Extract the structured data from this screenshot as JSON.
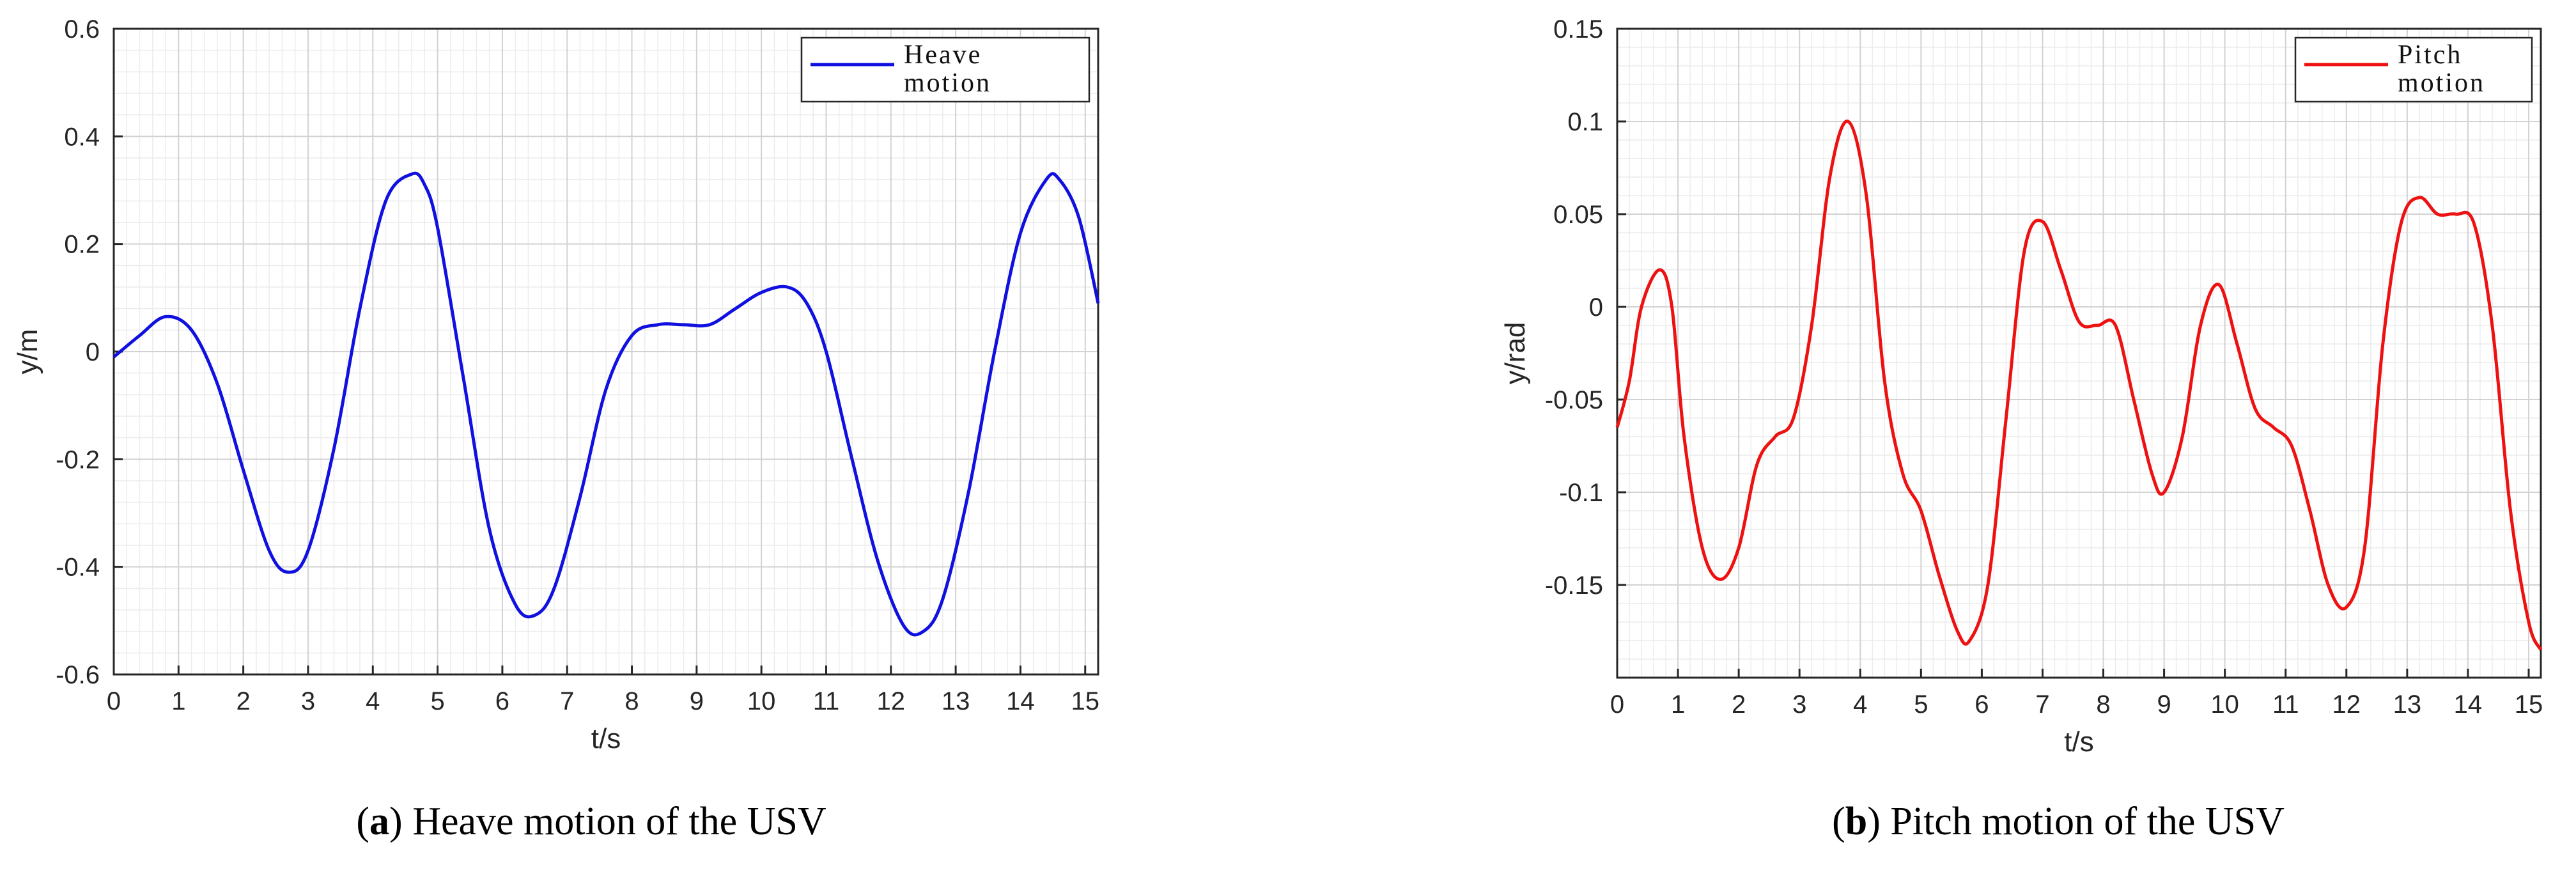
{
  "chart_data": [
    {
      "type": "line",
      "caption": {
        "letter": "a",
        "text": "Heave motion of the USV"
      },
      "xlabel": "t/s",
      "ylabel": "y/m",
      "xlim": [
        0,
        15.2
      ],
      "ylim": [
        -0.6,
        0.6
      ],
      "xticks": [
        0,
        1,
        2,
        3,
        4,
        5,
        6,
        7,
        8,
        9,
        10,
        11,
        12,
        13,
        14,
        15
      ],
      "xtick_labels": [
        "0",
        "1",
        "2",
        "3",
        "4",
        "5",
        "6",
        "7",
        "8",
        "9",
        "10",
        "11",
        "12",
        "13",
        "14",
        "15"
      ],
      "yticks": [
        -0.6,
        -0.4,
        -0.2,
        0,
        0.2,
        0.4,
        0.6
      ],
      "ytick_labels": [
        "-0.6",
        "-0.4",
        "-0.2",
        "0",
        "0.2",
        "0.4",
        "0.6"
      ],
      "grid": true,
      "legend_position": "top-right",
      "series": [
        {
          "name": "Heave motion",
          "legend_lines": [
            "Heave",
            "motion"
          ],
          "color": "#1010e0",
          "x": [
            0,
            0.4,
            0.8,
            1.2,
            1.6,
            2.0,
            2.4,
            2.7,
            3.0,
            3.4,
            3.8,
            4.2,
            4.6,
            4.8,
            5.0,
            5.4,
            5.8,
            6.2,
            6.5,
            6.8,
            7.2,
            7.6,
            8.0,
            8.4,
            8.8,
            9.2,
            9.6,
            10.0,
            10.4,
            10.7,
            11.0,
            11.4,
            11.8,
            12.2,
            12.5,
            12.8,
            13.2,
            13.6,
            14.0,
            14.4,
            14.6,
            14.9,
            15.2
          ],
          "y": [
            -0.01,
            0.03,
            0.065,
            0.04,
            -0.06,
            -0.22,
            -0.37,
            -0.41,
            -0.37,
            -0.18,
            0.08,
            0.28,
            0.33,
            0.31,
            0.23,
            -0.05,
            -0.33,
            -0.47,
            -0.49,
            -0.44,
            -0.27,
            -0.07,
            0.03,
            0.05,
            0.05,
            0.05,
            0.08,
            0.11,
            0.12,
            0.09,
            0.0,
            -0.2,
            -0.39,
            -0.51,
            -0.52,
            -0.46,
            -0.26,
            0.0,
            0.22,
            0.32,
            0.32,
            0.25,
            0.09
          ]
        }
      ]
    },
    {
      "type": "line",
      "caption": {
        "letter": "b",
        "text": "Pitch motion of the USV"
      },
      "xlabel": "t/s",
      "ylabel": "y/rad",
      "xlim": [
        0,
        15.2
      ],
      "ylim": [
        -0.2,
        0.15
      ],
      "xticks": [
        0,
        1,
        2,
        3,
        4,
        5,
        6,
        7,
        8,
        9,
        10,
        11,
        12,
        13,
        14,
        15
      ],
      "xtick_labels": [
        "0",
        "1",
        "2",
        "3",
        "4",
        "5",
        "6",
        "7",
        "8",
        "9",
        "10",
        "11",
        "12",
        "13",
        "14",
        "15"
      ],
      "yticks": [
        -0.15,
        -0.1,
        -0.05,
        0,
        0.05,
        0.1,
        0.15
      ],
      "ytick_labels": [
        "-0.15",
        "-0.1",
        "-0.05",
        "0",
        "0.05",
        "0.1",
        "0.15"
      ],
      "grid": true,
      "legend_position": "top-right",
      "series": [
        {
          "name": "Pitch motion",
          "legend_lines": [
            "Pitch",
            "motion"
          ],
          "color": "#ee1111",
          "x": [
            0,
            0.2,
            0.4,
            0.7,
            0.9,
            1.1,
            1.4,
            1.7,
            2.0,
            2.3,
            2.6,
            2.9,
            3.2,
            3.5,
            3.8,
            4.1,
            4.4,
            4.7,
            5.0,
            5.3,
            5.6,
            5.8,
            6.1,
            6.4,
            6.7,
            7.0,
            7.3,
            7.6,
            7.9,
            8.2,
            8.5,
            8.8,
            9.0,
            9.3,
            9.6,
            9.9,
            10.2,
            10.5,
            10.8,
            11.1,
            11.4,
            11.7,
            12.0,
            12.3,
            12.6,
            12.9,
            13.2,
            13.5,
            13.8,
            14.1,
            14.4,
            14.7,
            15.0,
            15.2
          ],
          "y": [
            -0.065,
            -0.04,
            0.0,
            0.02,
            0.0,
            -0.07,
            -0.13,
            -0.147,
            -0.13,
            -0.085,
            -0.07,
            -0.06,
            -0.01,
            0.07,
            0.1,
            0.06,
            -0.04,
            -0.09,
            -0.11,
            -0.145,
            -0.175,
            -0.18,
            -0.15,
            -0.06,
            0.03,
            0.046,
            0.02,
            -0.008,
            -0.01,
            -0.01,
            -0.05,
            -0.09,
            -0.1,
            -0.07,
            -0.01,
            0.012,
            -0.02,
            -0.055,
            -0.065,
            -0.075,
            -0.11,
            -0.15,
            -0.162,
            -0.13,
            -0.02,
            0.045,
            0.059,
            0.05,
            0.05,
            0.045,
            -0.01,
            -0.11,
            -0.17,
            -0.185
          ]
        }
      ]
    }
  ]
}
